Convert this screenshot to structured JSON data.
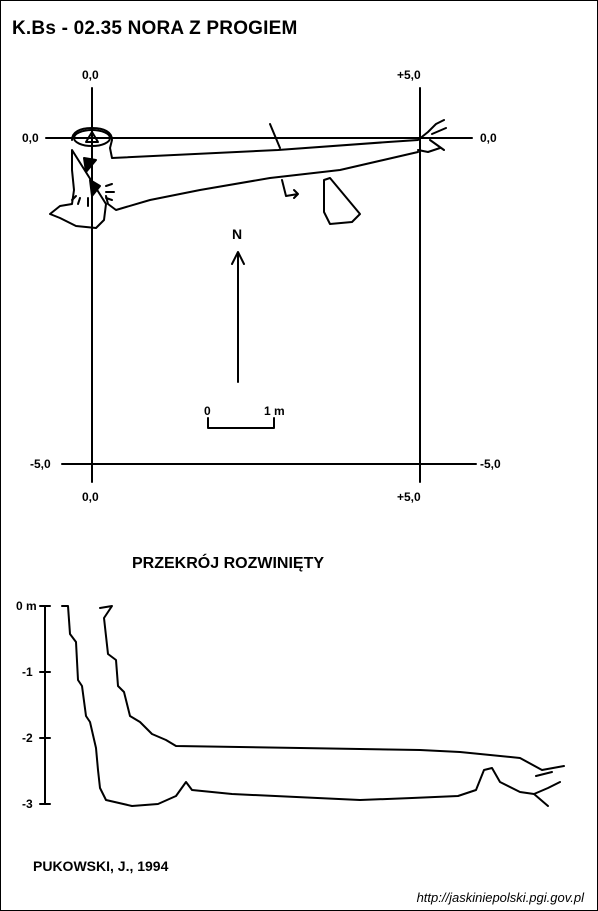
{
  "title": "K.Bs - 02.35  NORA Z PROGIEM",
  "plan": {
    "grid_labels": {
      "top_left_x": "0,0",
      "top_right_x": "+5,0",
      "left_top_y": "0,0",
      "right_top_y": "0,0",
      "left_bottom_y": "-5,0",
      "right_bottom_y": "-5,0",
      "bottom_left_x": "0,0",
      "bottom_right_x": "+5,0"
    },
    "north_label": "N",
    "scale": {
      "start": "0",
      "end": "1 m"
    }
  },
  "section": {
    "title": "PRZEKRÓJ ROZWINIĘTY",
    "depth_labels": [
      "0 m",
      "-1",
      "-2",
      "-3"
    ]
  },
  "author": "PUKOWSKI, J., 1994",
  "source": "http://jaskiniepolski.pgi.gov.pl"
}
